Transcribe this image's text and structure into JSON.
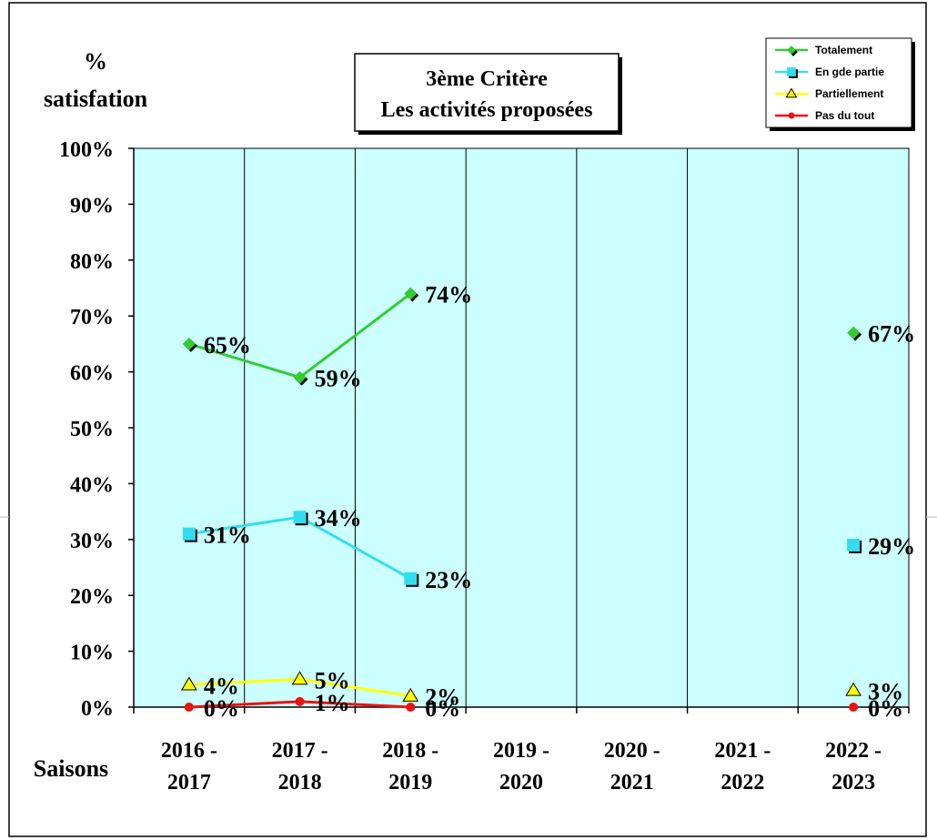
{
  "chart_data": {
    "type": "line",
    "title_lines": [
      "3ème  Critère",
      "Les activités proposées"
    ],
    "ylabel_lines": [
      "%",
      "satisfation"
    ],
    "xlabel": "Saisons",
    "ylim": [
      0,
      100
    ],
    "yticks": [
      "0%",
      "10%",
      "20%",
      "30%",
      "40%",
      "50%",
      "60%",
      "70%",
      "80%",
      "90%",
      "100%"
    ],
    "categories": [
      [
        "2016 -",
        "2017"
      ],
      [
        "2017 -",
        "2018"
      ],
      [
        "2018 -",
        "2019"
      ],
      [
        "2019 -",
        "2020"
      ],
      [
        "2020 -",
        "2021"
      ],
      [
        "2021 -",
        "2022"
      ],
      [
        "2022 -",
        "2023"
      ]
    ],
    "grid": "vertical lines between categories",
    "legend_position": "top-right",
    "plot_background": "#ccffff",
    "series": [
      {
        "name": "Totalement",
        "color": "#33cc33",
        "marker": "diamond",
        "values": [
          65,
          59,
          74,
          null,
          null,
          null,
          67
        ],
        "labels": [
          "65%",
          "59%",
          "74%",
          null,
          null,
          null,
          "67%"
        ]
      },
      {
        "name": "En gde partie",
        "color": "#33ddee",
        "marker": "square",
        "values": [
          31,
          34,
          23,
          null,
          null,
          null,
          29
        ],
        "labels": [
          "31%",
          "34%",
          "23%",
          null,
          null,
          null,
          "29%"
        ]
      },
      {
        "name": "Partiellement",
        "color": "#ffff00",
        "marker": "triangle",
        "values": [
          4,
          5,
          2,
          null,
          null,
          null,
          3
        ],
        "labels": [
          "4%",
          "5%",
          "2%",
          null,
          null,
          null,
          "3%"
        ]
      },
      {
        "name": "Pas du tout",
        "color": "#ee1111",
        "marker": "circle",
        "values": [
          0,
          1,
          0,
          null,
          null,
          null,
          0
        ],
        "labels": [
          "0%",
          "1%",
          "0%",
          null,
          null,
          null,
          "0%"
        ]
      }
    ]
  }
}
